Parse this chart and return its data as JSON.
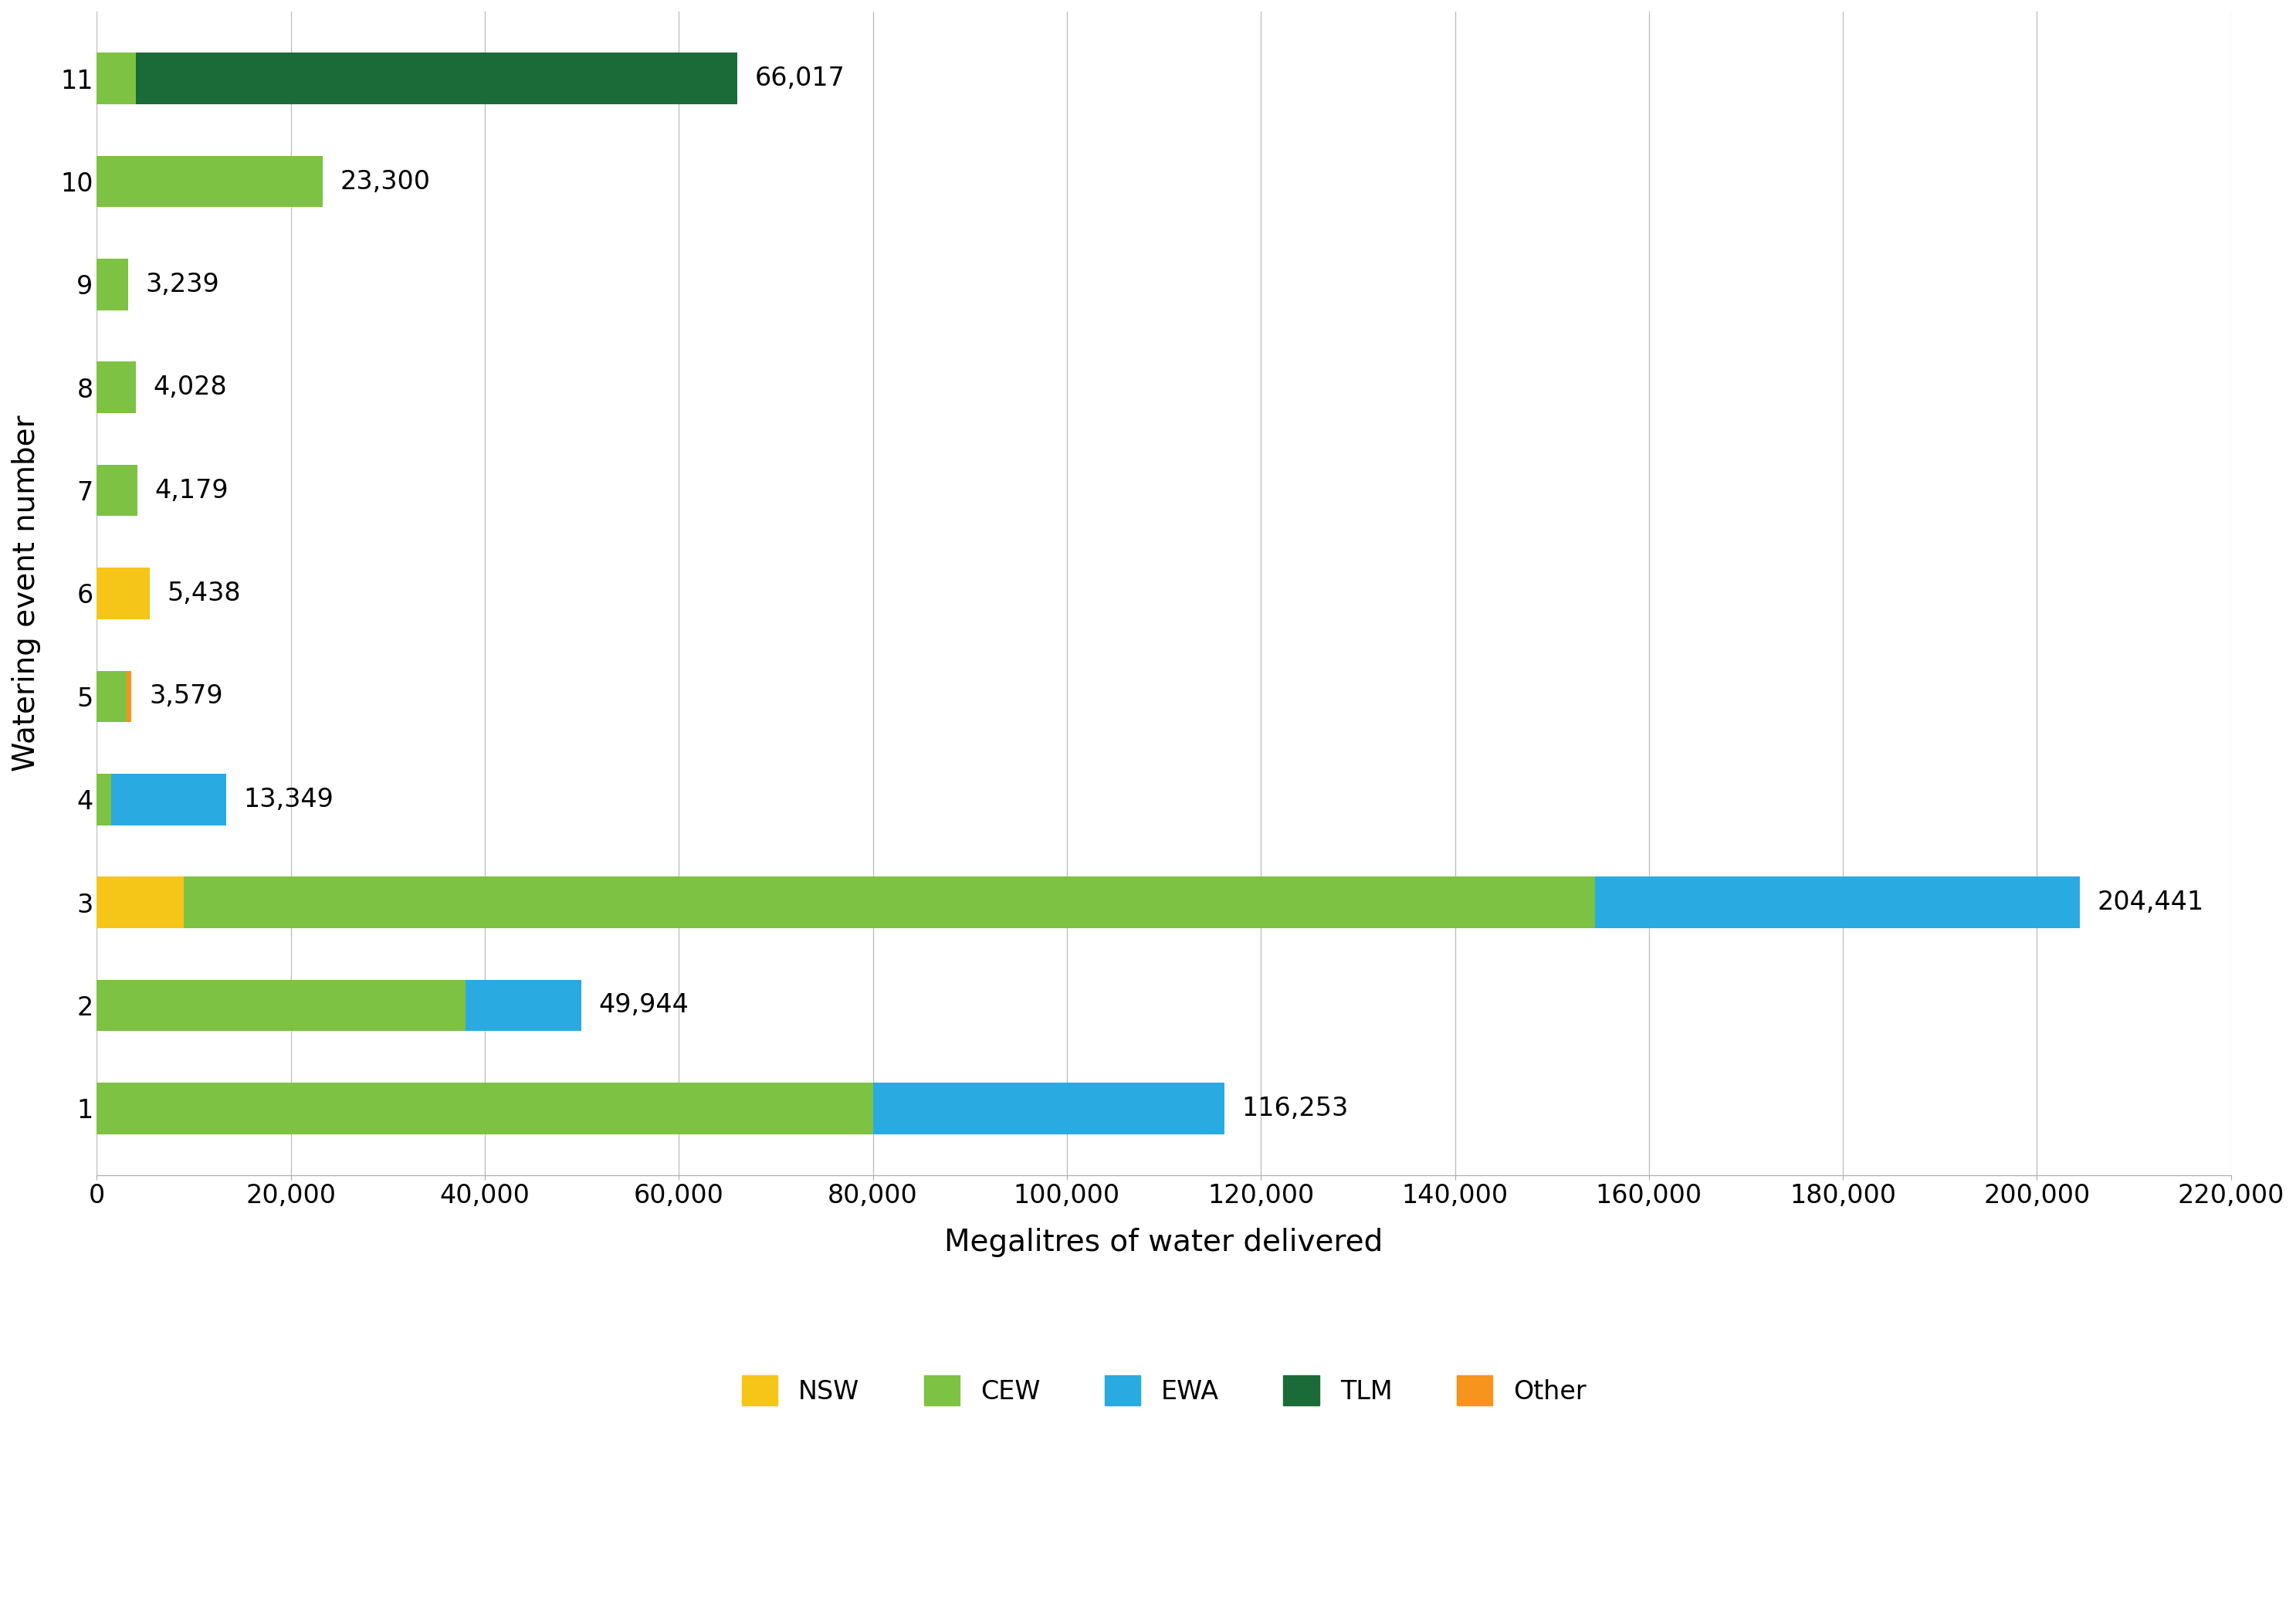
{
  "events": [
    1,
    2,
    3,
    4,
    5,
    6,
    7,
    8,
    9,
    10,
    11
  ],
  "components": {
    "NSW": [
      0,
      0,
      9000,
      0,
      0,
      5438,
      0,
      0,
      0,
      0,
      0
    ],
    "CEW": [
      80000,
      38000,
      145441,
      1500,
      3079,
      0,
      4179,
      4028,
      3239,
      23300,
      4000
    ],
    "EWA": [
      36253,
      11944,
      50000,
      11849,
      0,
      0,
      0,
      0,
      0,
      0,
      0
    ],
    "TLM": [
      0,
      0,
      0,
      0,
      0,
      0,
      0,
      0,
      0,
      0,
      62017
    ],
    "Other": [
      0,
      0,
      0,
      0,
      500,
      0,
      0,
      0,
      0,
      0,
      0
    ]
  },
  "totals": [
    116253,
    49944,
    204441,
    13349,
    3579,
    5438,
    4179,
    4028,
    3239,
    23300,
    66017
  ],
  "colors": {
    "NSW": "#F5C518",
    "CEW": "#7DC242",
    "EWA": "#29ABE2",
    "TLM": "#1A6B38",
    "Other": "#F7941D"
  },
  "xlabel": "Megalitres of water delivered",
  "ylabel": "Watering event number",
  "xlim": [
    0,
    220000
  ],
  "xtick_values": [
    0,
    20000,
    40000,
    60000,
    80000,
    100000,
    120000,
    140000,
    160000,
    180000,
    200000,
    220000
  ],
  "xtick_labels": [
    "0",
    "20,000",
    "40,000",
    "60,000",
    "80,000",
    "100,000",
    "120,000",
    "140,000",
    "160,000",
    "180,000",
    "200,000",
    "220,000"
  ],
  "background_color": "#FFFFFF",
  "grid_color": "#BBBBBB",
  "label_fontsize": 28,
  "tick_fontsize": 24,
  "legend_fontsize": 24,
  "annotation_fontsize": 24,
  "bar_height": 0.5,
  "ylim_low": 0.35,
  "ylim_high": 11.65
}
